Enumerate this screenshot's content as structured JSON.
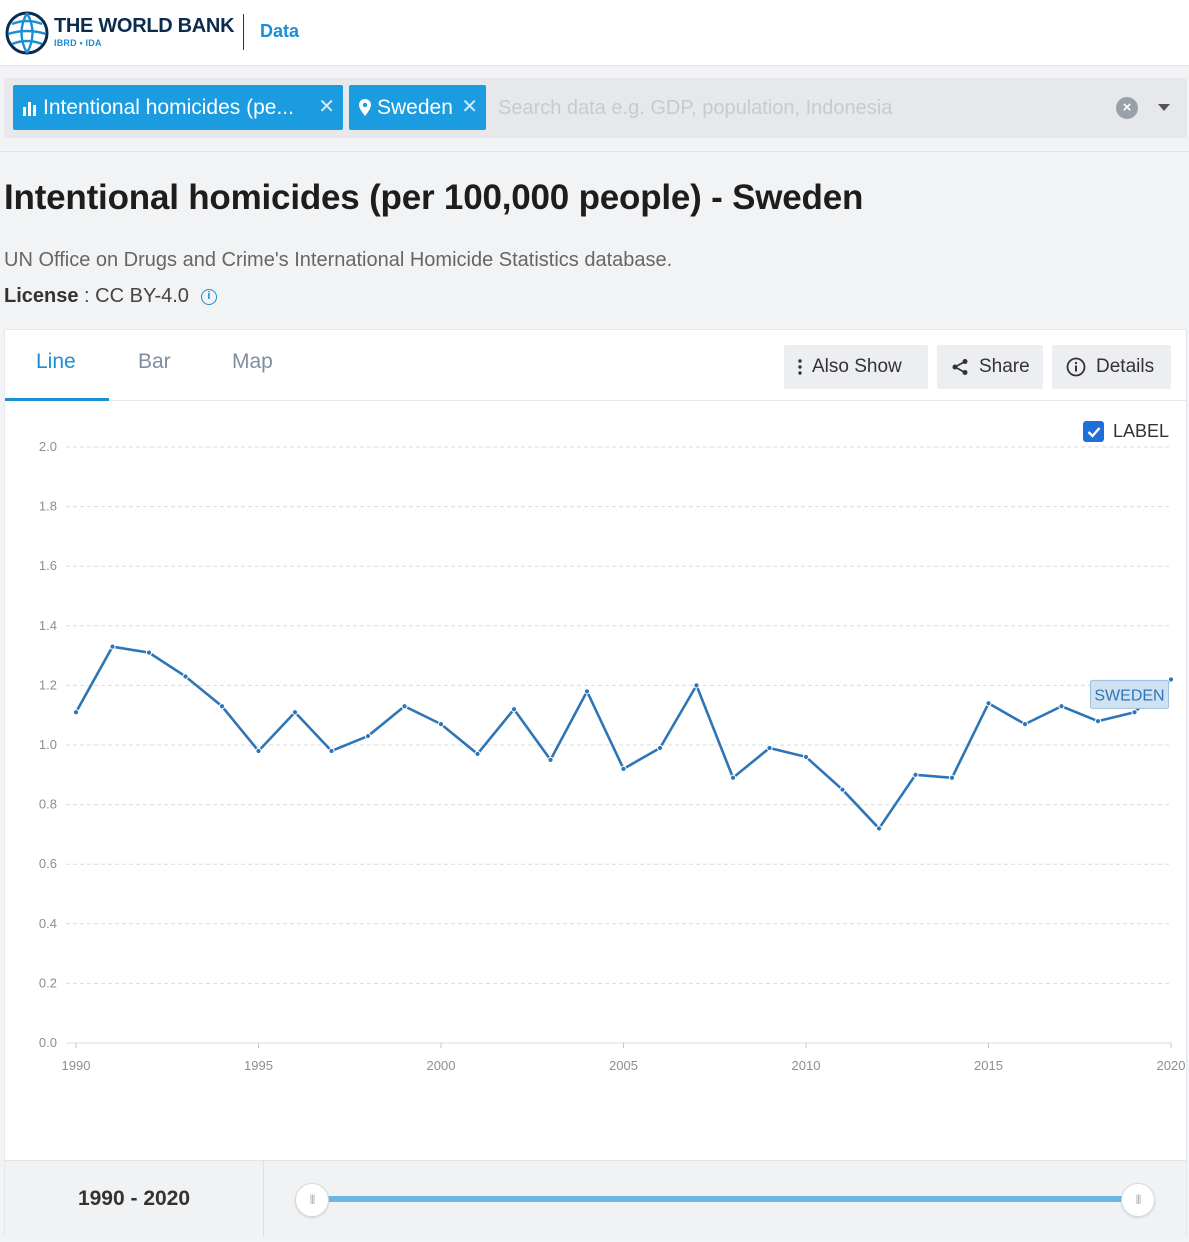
{
  "header": {
    "brand_name": "THE WORLD BANK",
    "brand_sub": "IBRD • IDA",
    "section": "Data"
  },
  "search": {
    "chips": [
      {
        "label": "Intentional homicides (pe...",
        "icon": "bar-chart-icon"
      },
      {
        "label": "Sweden",
        "icon": "location-pin-icon"
      }
    ],
    "placeholder": "Search data e.g. GDP, population, Indonesia",
    "value": ""
  },
  "page": {
    "title": "Intentional homicides (per 100,000 people) - Sweden",
    "source": "UN Office on Drugs and Crime's International Homicide Statistics database.",
    "license_label": "License",
    "license_sep": " : ",
    "license_value": "CC BY-4.0"
  },
  "tabs": [
    {
      "label": "Line",
      "active": true
    },
    {
      "label": "Bar",
      "active": false
    },
    {
      "label": "Map",
      "active": false
    }
  ],
  "toolbar": {
    "also_show": "Also Show",
    "share": "Share",
    "details": "Details"
  },
  "label_toggle": {
    "label": "LABEL",
    "checked": true
  },
  "chart_data": {
    "type": "line",
    "title": "Intentional homicides (per 100,000 people) - Sweden",
    "xlabel": "",
    "ylabel": "",
    "xlim": [
      1990,
      2020
    ],
    "ylim": [
      0,
      2.0
    ],
    "yticks": [
      0.0,
      0.2,
      0.4,
      0.6,
      0.8,
      1.0,
      1.2,
      1.4,
      1.6,
      1.8,
      2.0
    ],
    "ytick_labels": [
      "0.0",
      "0.2",
      "0.4",
      "0.6",
      "0.8",
      "1.0",
      "1.2",
      "1.4",
      "1.6",
      "1.8",
      "2.0"
    ],
    "xticks": [
      1990,
      1995,
      2000,
      2005,
      2010,
      2015,
      2020
    ],
    "xtick_labels": [
      "1990",
      "1995",
      "2000",
      "2005",
      "2010",
      "2015",
      "2020"
    ],
    "grid": true,
    "color": "#2e75b6",
    "series": [
      {
        "name": "SWEDEN",
        "x": [
          1990,
          1991,
          1992,
          1993,
          1994,
          1995,
          1996,
          1997,
          1998,
          1999,
          2000,
          2001,
          2002,
          2003,
          2004,
          2005,
          2006,
          2007,
          2008,
          2009,
          2010,
          2011,
          2012,
          2013,
          2014,
          2015,
          2016,
          2017,
          2018,
          2019,
          2020
        ],
        "values": [
          1.11,
          1.33,
          1.31,
          1.23,
          1.13,
          0.98,
          1.11,
          0.98,
          1.03,
          1.13,
          1.07,
          0.97,
          1.12,
          0.95,
          1.18,
          0.92,
          0.99,
          1.2,
          0.89,
          0.99,
          0.96,
          0.85,
          0.72,
          0.9,
          0.89,
          1.14,
          1.07,
          1.13,
          1.08,
          1.11,
          1.22
        ]
      }
    ],
    "series_label": "SWEDEN"
  },
  "range": {
    "label": "1990 - 2020"
  }
}
